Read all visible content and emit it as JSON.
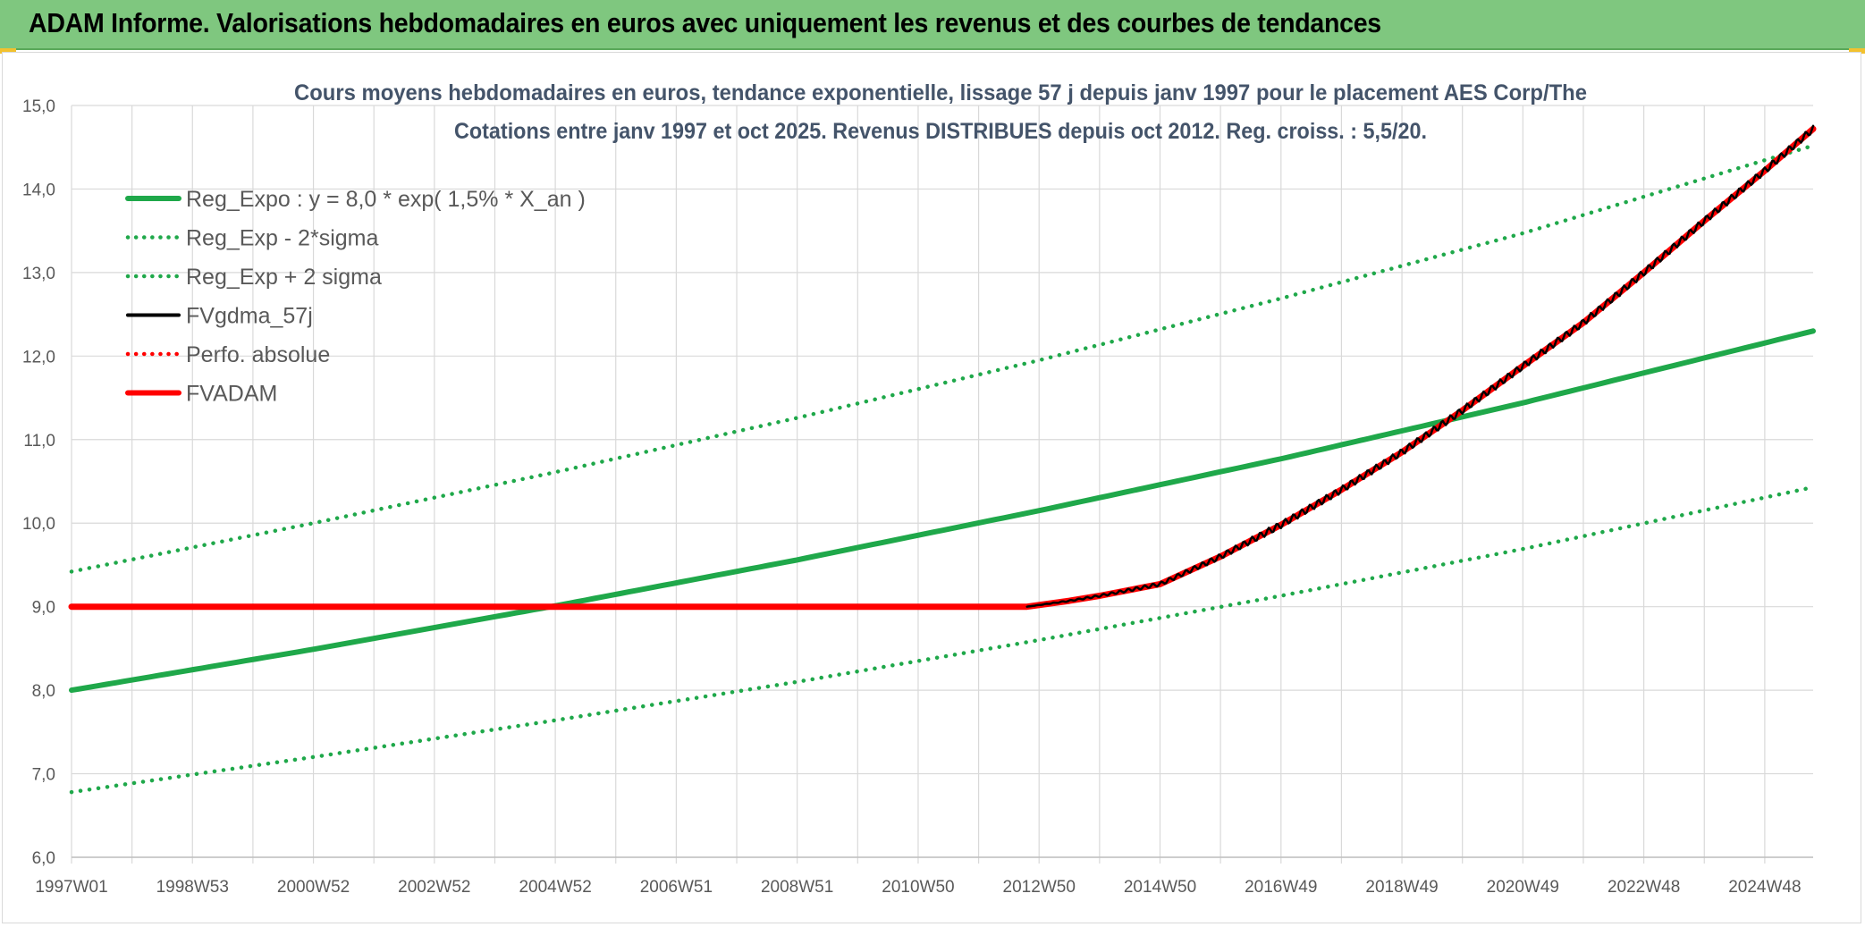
{
  "header": {
    "title": "ADAM Informe. Valorisations hebdomadaires en euros avec uniquement les revenus et des courbes de tendances"
  },
  "colors": {
    "header_bg": "#7fc77f",
    "reg_green": "#1fa84a",
    "red": "#ff0000",
    "black": "#000000",
    "grid": "#d9d9d9"
  },
  "chart_data": {
    "type": "line",
    "title_line1": "Cours moyens hebdomadaires en euros, tendance exponentielle, lissage 57 j depuis janv 1997 pour le placement AES Corp/The",
    "title_line2": "Cotations entre janv 1997 et oct 2025. Revenus DISTRIBUES depuis oct 2012. Reg. croiss. : 5,5/20.",
    "ylim": [
      6.0,
      15.0
    ],
    "y_ticks": [
      "6,0",
      "7,0",
      "8,0",
      "9,0",
      "10,0",
      "11,0",
      "12,0",
      "13,0",
      "14,0",
      "15,0"
    ],
    "xlim": [
      1997.0,
      2025.8
    ],
    "x_tick_labels": [
      "1997W01",
      "1998W53",
      "2000W52",
      "2002W52",
      "2004W52",
      "2006W51",
      "2008W51",
      "2010W50",
      "2012W50",
      "2014W50",
      "2016W49",
      "2018W49",
      "2020W49",
      "2022W48",
      "2024W48"
    ],
    "x_tick_years": [
      1997.0,
      1999.0,
      2001.0,
      2003.0,
      2005.0,
      2007.0,
      2009.0,
      2011.0,
      2013.0,
      2015.0,
      2017.0,
      2019.0,
      2021.0,
      2023.0,
      2025.0
    ],
    "grid": true,
    "legend_position": "top-left",
    "legend": [
      {
        "label": "Reg_Expo : y = 8,0 * exp( 1,5% *  X_an )",
        "color": "#1fa84a",
        "style": "solid-thick"
      },
      {
        "label": "Reg_Exp - 2*sigma",
        "color": "#1fa84a",
        "style": "dotted"
      },
      {
        "label": "Reg_Exp + 2 sigma",
        "color": "#1fa84a",
        "style": "dotted"
      },
      {
        "label": "FVgdma_57j",
        "color": "#000000",
        "style": "solid"
      },
      {
        "label": "Perfo. absolue",
        "color": "#ff0000",
        "style": "dotted"
      },
      {
        "label": "FVADAM",
        "color": "#ff0000",
        "style": "solid-thick"
      }
    ],
    "series": [
      {
        "name": "Reg_Expo : y = 8,0 * exp( 1,5% *  X_an )",
        "x": [
          1997.0,
          2001.0,
          2005.0,
          2009.0,
          2013.0,
          2017.0,
          2021.0,
          2025.8
        ],
        "values": [
          8.0,
          8.49,
          9.01,
          9.56,
          10.15,
          10.77,
          11.44,
          12.3
        ]
      },
      {
        "name": "Reg_Exp - 2*sigma",
        "x": [
          1997.0,
          2001.0,
          2005.0,
          2009.0,
          2013.0,
          2017.0,
          2021.0,
          2025.8
        ],
        "values": [
          6.78,
          7.2,
          7.64,
          8.1,
          8.6,
          9.13,
          9.69,
          10.43
        ]
      },
      {
        "name": "Reg_Exp + 2 sigma",
        "x": [
          1997.0,
          2001.0,
          2005.0,
          2009.0,
          2013.0,
          2017.0,
          2021.0,
          2025.8
        ],
        "values": [
          9.42,
          10.0,
          10.61,
          11.26,
          11.95,
          12.69,
          13.47,
          14.52
        ]
      },
      {
        "name": "FVADAM",
        "x": [
          1997.0,
          2012.8,
          2013.5,
          2014.0,
          2015.0,
          2016.0,
          2017.0,
          2018.0,
          2019.0,
          2020.0,
          2021.0,
          2022.0,
          2023.0,
          2024.0,
          2025.0,
          2025.8
        ],
        "values": [
          9.0,
          9.0,
          9.07,
          9.13,
          9.27,
          9.6,
          9.98,
          10.4,
          10.85,
          11.35,
          11.88,
          12.4,
          13.0,
          13.62,
          14.22,
          14.72
        ]
      },
      {
        "name": "FVgdma_57j",
        "x": [
          2012.8,
          2013.5,
          2014.0,
          2015.0,
          2016.0,
          2017.0,
          2018.0,
          2019.0,
          2020.0,
          2021.0,
          2022.0,
          2023.0,
          2024.0,
          2025.0,
          2025.8
        ],
        "values": [
          9.0,
          9.07,
          9.13,
          9.27,
          9.6,
          9.98,
          10.4,
          10.85,
          11.35,
          11.88,
          12.4,
          13.0,
          13.62,
          14.22,
          14.72
        ]
      }
    ]
  }
}
